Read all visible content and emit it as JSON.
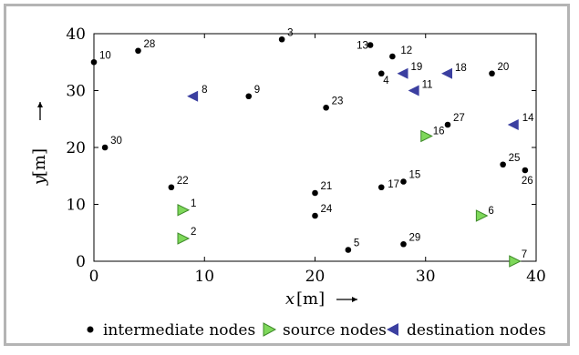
{
  "chart_data": {
    "type": "scatter",
    "xlabel_var": "x",
    "xlabel_unit": "[m]",
    "ylabel_var": "y",
    "ylabel_unit": "[m]",
    "xlim": [
      0,
      40
    ],
    "ylim": [
      0,
      40
    ],
    "xticks": [
      0,
      10,
      20,
      30,
      40
    ],
    "yticks": [
      0,
      10,
      20,
      30,
      40
    ],
    "grid": false,
    "legend_position": "bottom",
    "colors": {
      "intermediate": "#000000",
      "source": "#7ed85a",
      "source_stroke": "#3f8a2a",
      "destination": "#3b3fa0"
    },
    "series": [
      {
        "key": "intermediate",
        "name": "intermediate nodes",
        "marker": "dot",
        "points": [
          {
            "id": "3",
            "x": 17,
            "y": 39
          },
          {
            "id": "4",
            "x": 26,
            "y": 33
          },
          {
            "id": "5",
            "x": 23,
            "y": 2
          },
          {
            "id": "9",
            "x": 14,
            "y": 29
          },
          {
            "id": "10",
            "x": 0,
            "y": 35
          },
          {
            "id": "12",
            "x": 27,
            "y": 36
          },
          {
            "id": "13",
            "x": 25,
            "y": 38
          },
          {
            "id": "15",
            "x": 28,
            "y": 14
          },
          {
            "id": "17",
            "x": 26,
            "y": 13
          },
          {
            "id": "20",
            "x": 36,
            "y": 33
          },
          {
            "id": "21",
            "x": 20,
            "y": 12
          },
          {
            "id": "22",
            "x": 7,
            "y": 13
          },
          {
            "id": "23",
            "x": 21,
            "y": 27
          },
          {
            "id": "24",
            "x": 20,
            "y": 8
          },
          {
            "id": "25",
            "x": 37,
            "y": 17
          },
          {
            "id": "26",
            "x": 39,
            "y": 16
          },
          {
            "id": "27",
            "x": 32,
            "y": 24
          },
          {
            "id": "28",
            "x": 4,
            "y": 37
          },
          {
            "id": "29",
            "x": 28,
            "y": 3
          },
          {
            "id": "30",
            "x": 1,
            "y": 20
          }
        ]
      },
      {
        "key": "source",
        "name": "source nodes",
        "marker": "triangle-right",
        "points": [
          {
            "id": "1",
            "x": 8,
            "y": 9
          },
          {
            "id": "2",
            "x": 8,
            "y": 4
          },
          {
            "id": "6",
            "x": 35,
            "y": 8
          },
          {
            "id": "7",
            "x": 38,
            "y": 0
          },
          {
            "id": "16",
            "x": 30,
            "y": 22
          }
        ]
      },
      {
        "key": "destination",
        "name": "destination nodes",
        "marker": "triangle-left",
        "points": [
          {
            "id": "8",
            "x": 9,
            "y": 29
          },
          {
            "id": "11",
            "x": 29,
            "y": 30
          },
          {
            "id": "14",
            "x": 38,
            "y": 24
          },
          {
            "id": "18",
            "x": 32,
            "y": 33
          },
          {
            "id": "19",
            "x": 28,
            "y": 33
          }
        ]
      }
    ]
  }
}
